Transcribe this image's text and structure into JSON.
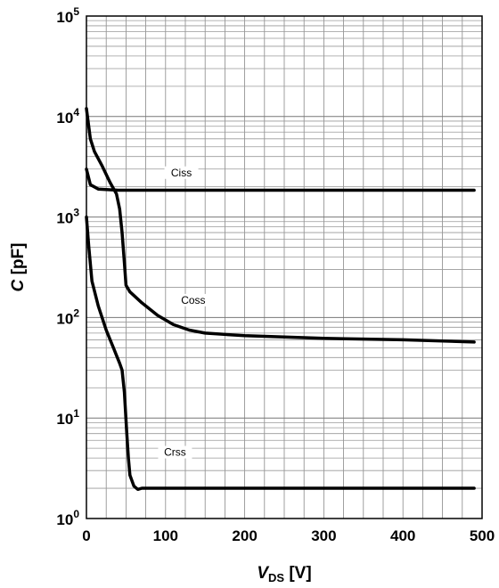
{
  "chart_data": {
    "type": "line",
    "xlim": [
      0,
      500
    ],
    "ylim": [
      1,
      100000
    ],
    "y_scale": "log",
    "grid": true,
    "x_ticks": [
      0,
      100,
      200,
      300,
      400,
      500
    ],
    "x_tick_labels": [
      "0",
      "100",
      "200",
      "300",
      "400",
      "500"
    ],
    "y_tick_labels": [
      {
        "base": "10",
        "exp": "0",
        "value": 1
      },
      {
        "base": "10",
        "exp": "1",
        "value": 10
      },
      {
        "base": "10",
        "exp": "2",
        "value": 100
      },
      {
        "base": "10",
        "exp": "3",
        "value": 1000
      },
      {
        "base": "10",
        "exp": "4",
        "value": 10000
      },
      {
        "base": "10",
        "exp": "5",
        "value": 100000
      }
    ],
    "xlabel": {
      "main": "V",
      "sub": "DS",
      "unit": " [V]"
    },
    "ylabel": {
      "main": "C",
      "unit": " [pF]"
    },
    "series": [
      {
        "name": "Ciss",
        "label_at": [
          120,
          2600
        ],
        "points": [
          [
            0,
            3000
          ],
          [
            5,
            2100
          ],
          [
            15,
            1900
          ],
          [
            40,
            1850
          ],
          [
            100,
            1850
          ],
          [
            200,
            1850
          ],
          [
            300,
            1850
          ],
          [
            400,
            1850
          ],
          [
            490,
            1850
          ]
        ]
      },
      {
        "name": "Coss",
        "label_at": [
          135,
          140
        ],
        "points": [
          [
            0,
            12000
          ],
          [
            5,
            6000
          ],
          [
            10,
            4500
          ],
          [
            20,
            3200
          ],
          [
            30,
            2200
          ],
          [
            38,
            1700
          ],
          [
            42,
            1200
          ],
          [
            45,
            700
          ],
          [
            48,
            350
          ],
          [
            50,
            210
          ],
          [
            55,
            180
          ],
          [
            70,
            140
          ],
          [
            90,
            105
          ],
          [
            110,
            85
          ],
          [
            130,
            75
          ],
          [
            150,
            70
          ],
          [
            200,
            66
          ],
          [
            300,
            62
          ],
          [
            400,
            60
          ],
          [
            490,
            57
          ]
        ]
      },
      {
        "name": "Crss",
        "label_at": [
          112,
          4.3
        ],
        "points": [
          [
            0,
            1000
          ],
          [
            3,
            500
          ],
          [
            7,
            230
          ],
          [
            15,
            130
          ],
          [
            25,
            75
          ],
          [
            35,
            48
          ],
          [
            42,
            35
          ],
          [
            45,
            30
          ],
          [
            48,
            18
          ],
          [
            51,
            7
          ],
          [
            53,
            4
          ],
          [
            55,
            2.7
          ],
          [
            60,
            2.1
          ],
          [
            65,
            1.95
          ],
          [
            70,
            2
          ],
          [
            100,
            2
          ],
          [
            200,
            2
          ],
          [
            300,
            2
          ],
          [
            400,
            2
          ],
          [
            490,
            2
          ]
        ]
      }
    ]
  }
}
